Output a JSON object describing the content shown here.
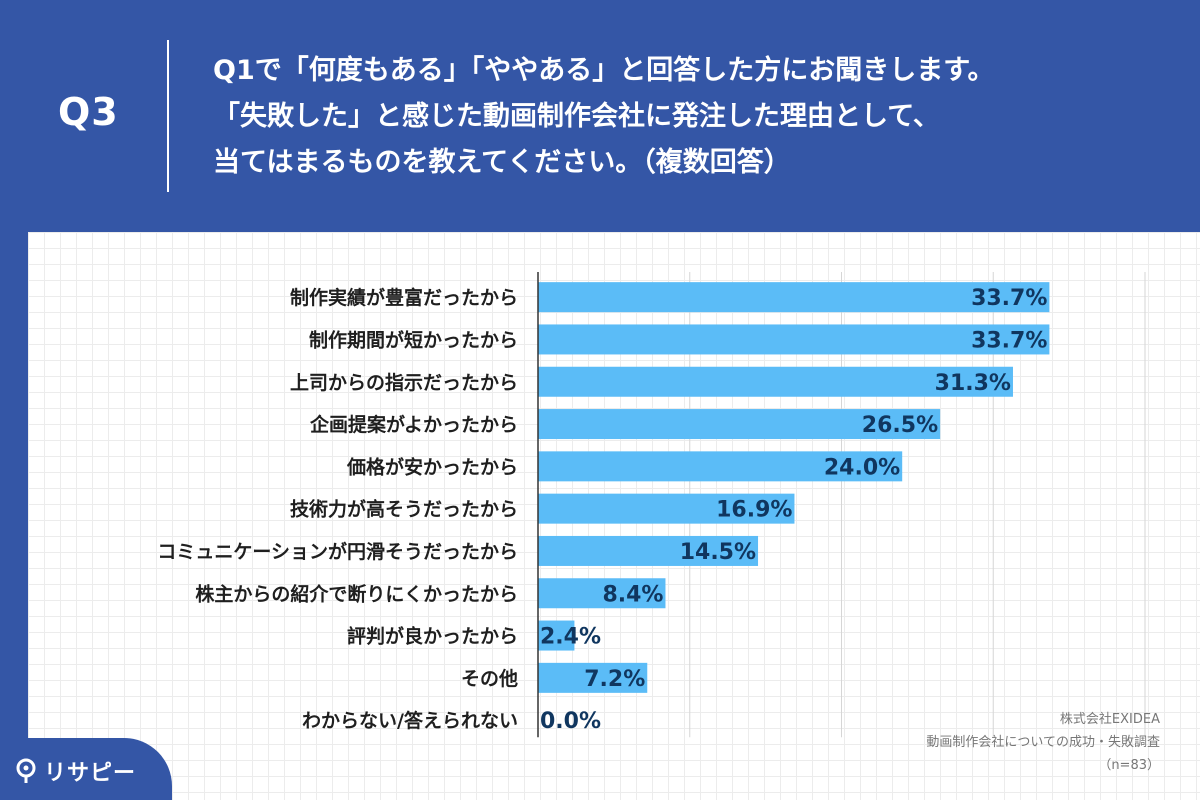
{
  "header": {
    "q_label": "Q3",
    "question_lines": [
      "Q1で「何度もある」「ややある」と回答した方にお聞きします。",
      "「失敗した」と感じた動画制作会社に発注した理由として、",
      "当てはまるものを教えてください。（複数回答）"
    ]
  },
  "chart_data": {
    "type": "bar",
    "orientation": "horizontal",
    "categories": [
      "制作実績が豊富だったから",
      "制作期間が短かったから",
      "上司からの指示だったから",
      "企画提案がよかったから",
      "価格が安かったから",
      "技術力が高そうだったから",
      "コミュニケーションが円滑そうだったから",
      "株主からの紹介で断りにくかったから",
      "評判が良かったから",
      "その他",
      "わからない/答えられない"
    ],
    "values": [
      33.7,
      33.7,
      31.3,
      26.5,
      24.0,
      16.9,
      14.5,
      8.4,
      2.4,
      7.2,
      0.0
    ],
    "value_labels": [
      "33.7%",
      "33.7%",
      "31.3%",
      "26.5%",
      "24.0%",
      "16.9%",
      "14.5%",
      "8.4%",
      "2.4%",
      "7.2%",
      "0.0%"
    ],
    "xlim": [
      0,
      40
    ],
    "grid": true,
    "bar_color": "#5bbcf7",
    "value_color": "#10365f"
  },
  "footer": {
    "source_lines": [
      "株式会社EXIDEA",
      "動画制作会社についての成功・失敗調査",
      "（n=83）"
    ],
    "logo_text": "リサピー",
    "logo_icon": "pin-icon"
  },
  "colors": {
    "background": "#3456a6",
    "panel": "#ffffff",
    "text_white": "#ffffff"
  }
}
